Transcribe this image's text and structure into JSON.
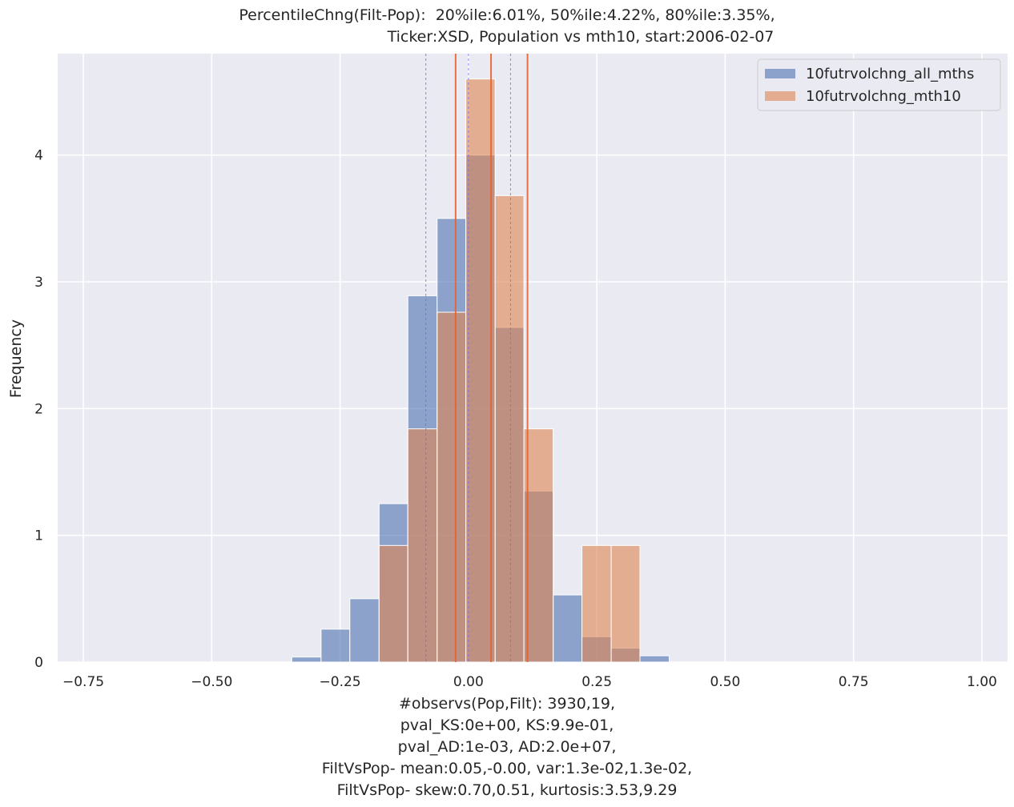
{
  "chart_data": {
    "type": "bar",
    "title_lines": [
      "PercentileChng(Filt-Pop):  20%ile:6.01%, 50%ile:4.22%, 80%ile:3.35%,",
      "Ticker:XSD, Population vs mth10, start:2006-02-07"
    ],
    "ylabel": "Frequency",
    "xlabel_lines": [
      "#observs(Pop,Filt): 3930,19,",
      "pval_KS:0e+00, KS:9.9e-01,",
      "pval_AD:1e-03, AD:2.0e+07,",
      "FiltVsPop- mean:0.05,-0.00, var:1.3e-02,1.3e-02,",
      "FiltVsPop- skew:0.70,0.51, kurtosis:3.53,9.29"
    ],
    "xlim": [
      -0.8,
      1.05
    ],
    "ylim": [
      0,
      4.8
    ],
    "xticks": [
      -0.75,
      -0.5,
      -0.25,
      0.0,
      0.25,
      0.5,
      0.75,
      1.0
    ],
    "xtick_labels": [
      "−0.75",
      "−0.50",
      "−0.25",
      "0.00",
      "0.25",
      "0.50",
      "0.75",
      "1.00"
    ],
    "yticks": [
      0,
      1,
      2,
      3,
      4
    ],
    "ytick_labels": [
      "0",
      "1",
      "2",
      "3",
      "4"
    ],
    "grid": true,
    "legend_position": "top-right",
    "series": [
      {
        "name": "10futrvolchng_all_mths",
        "color": "#4c72b0",
        "alpha": 0.6,
        "bins": [
          {
            "x0": -0.344,
            "x1": -0.287,
            "value": 0.04
          },
          {
            "x0": -0.287,
            "x1": -0.231,
            "value": 0.26
          },
          {
            "x0": -0.231,
            "x1": -0.174,
            "value": 0.5
          },
          {
            "x0": -0.174,
            "x1": -0.118,
            "value": 1.25
          },
          {
            "x0": -0.118,
            "x1": -0.061,
            "value": 2.89
          },
          {
            "x0": -0.061,
            "x1": -0.005,
            "value": 3.5
          },
          {
            "x0": -0.005,
            "x1": 0.052,
            "value": 4.0
          },
          {
            "x0": 0.052,
            "x1": 0.108,
            "value": 2.64
          },
          {
            "x0": 0.108,
            "x1": 0.165,
            "value": 1.35
          },
          {
            "x0": 0.165,
            "x1": 0.221,
            "value": 0.53
          },
          {
            "x0": 0.221,
            "x1": 0.278,
            "value": 0.2
          },
          {
            "x0": 0.278,
            "x1": 0.334,
            "value": 0.11
          },
          {
            "x0": 0.334,
            "x1": 0.391,
            "value": 0.05
          }
        ]
      },
      {
        "name": "10futrvolchng_mth10",
        "color": "#dd8452",
        "alpha": 0.6,
        "bins": [
          {
            "x0": -0.174,
            "x1": -0.118,
            "value": 0.92
          },
          {
            "x0": -0.118,
            "x1": -0.061,
            "value": 1.84
          },
          {
            "x0": -0.061,
            "x1": -0.005,
            "value": 2.76
          },
          {
            "x0": -0.005,
            "x1": 0.052,
            "value": 4.6
          },
          {
            "x0": 0.052,
            "x1": 0.108,
            "value": 3.68
          },
          {
            "x0": 0.108,
            "x1": 0.165,
            "value": 1.84
          },
          {
            "x0": 0.165,
            "x1": 0.221,
            "value": 0.0
          },
          {
            "x0": 0.221,
            "x1": 0.278,
            "value": 0.92
          },
          {
            "x0": 0.278,
            "x1": 0.334,
            "value": 0.92
          }
        ]
      }
    ],
    "percentile_lines": {
      "population": {
        "color": "#6b6bff",
        "style": "dashed",
        "values": [
          -0.083,
          0.0,
          0.082
        ]
      },
      "filtered": {
        "color": "#e8622b",
        "style": "solid",
        "values": [
          -0.025,
          0.044,
          0.115
        ]
      }
    }
  }
}
